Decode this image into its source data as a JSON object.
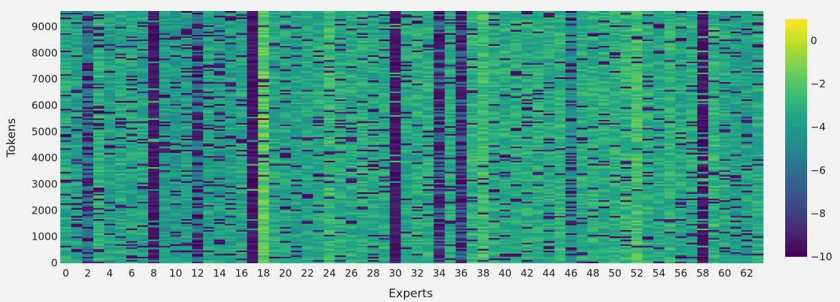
{
  "chart_data": {
    "type": "heatmap",
    "title": "",
    "xlabel": "Experts",
    "ylabel": "Tokens",
    "x_range": [
      0,
      63
    ],
    "y_range": [
      0,
      9600
    ],
    "x_ticks": [
      0,
      2,
      4,
      6,
      8,
      10,
      12,
      14,
      16,
      18,
      20,
      22,
      24,
      26,
      28,
      30,
      32,
      34,
      36,
      38,
      40,
      42,
      44,
      46,
      48,
      50,
      52,
      54,
      56,
      58,
      60,
      62
    ],
    "y_ticks": [
      0,
      1000,
      2000,
      3000,
      4000,
      5000,
      6000,
      7000,
      8000,
      9000
    ],
    "colorscale": "viridis",
    "color_range": [
      -10,
      1
    ],
    "colorbar_ticks": [
      0,
      -2,
      -4,
      -6,
      -8,
      -10
    ],
    "colorbar_tick_labels": [
      "0",
      "−2",
      "−4",
      "−6",
      "−8",
      "−10"
    ],
    "expert_profiles": {
      "experts": [
        0,
        1,
        2,
        3,
        4,
        5,
        6,
        7,
        8,
        9,
        10,
        11,
        12,
        13,
        14,
        15,
        16,
        17,
        18,
        19,
        20,
        21,
        22,
        23,
        24,
        25,
        26,
        27,
        28,
        29,
        30,
        31,
        32,
        33,
        34,
        35,
        36,
        37,
        38,
        39,
        40,
        41,
        42,
        43,
        44,
        45,
        46,
        47,
        48,
        49,
        50,
        51,
        52,
        53,
        54,
        55,
        56,
        57,
        58,
        59,
        60,
        61,
        62,
        63
      ],
      "typical_value": [
        -3.5,
        -3.8,
        -5.5,
        -3.0,
        -3.8,
        -3.5,
        -3.6,
        -3.6,
        -10,
        -4.0,
        -4.2,
        -3.8,
        -5.5,
        -3.6,
        -4.0,
        -3.8,
        -3.6,
        -10,
        -1.8,
        -3.6,
        -3.5,
        -3.7,
        -3.5,
        -3.6,
        -2.8,
        -3.3,
        -3.4,
        -3.3,
        -3.5,
        -3.4,
        -10,
        -3.5,
        -3.3,
        -3.3,
        -6.0,
        -3.4,
        -6.5,
        -3.0,
        -2.6,
        -3.3,
        -3.4,
        -3.2,
        -3.3,
        -3.3,
        -3.4,
        -3.0,
        -4.6,
        -3.3,
        -3.2,
        -3.2,
        -3.1,
        -3.0,
        -2.4,
        -3.2,
        -3.4,
        -3.0,
        -3.6,
        -3.4,
        -10,
        -3.0,
        -3.5,
        -3.8,
        -3.8,
        -3.4
      ],
      "dark_fraction": [
        0.15,
        0.15,
        0.35,
        0.15,
        0.12,
        0.1,
        0.1,
        0.12,
        0.95,
        0.12,
        0.12,
        0.15,
        0.45,
        0.15,
        0.2,
        0.12,
        0.1,
        0.95,
        0.05,
        0.1,
        0.1,
        0.1,
        0.1,
        0.12,
        0.08,
        0.1,
        0.1,
        0.1,
        0.1,
        0.1,
        0.95,
        0.1,
        0.1,
        0.1,
        0.55,
        0.1,
        0.6,
        0.08,
        0.05,
        0.08,
        0.08,
        0.08,
        0.08,
        0.08,
        0.08,
        0.08,
        0.25,
        0.08,
        0.08,
        0.08,
        0.08,
        0.08,
        0.05,
        0.08,
        0.1,
        0.08,
        0.1,
        0.1,
        0.85,
        0.08,
        0.1,
        0.12,
        0.12,
        0.1
      ]
    }
  }
}
